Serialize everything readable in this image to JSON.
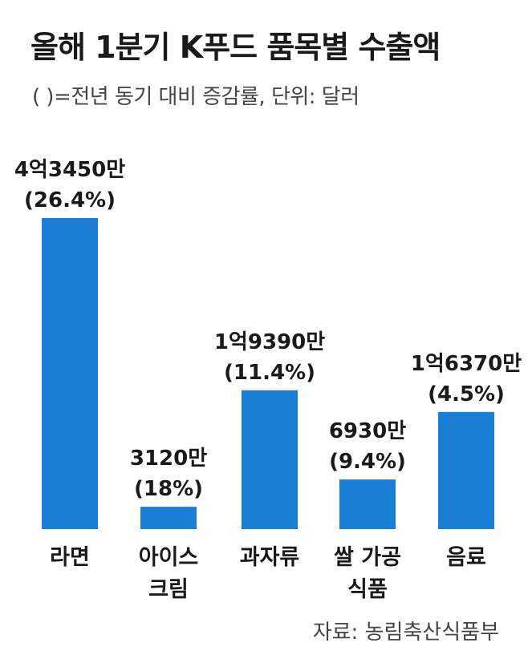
{
  "title": "올해 1분기 K푸드 품목별 수출액",
  "subtitle": "( )=전년 동기 대비 증감률, 단위: 달러",
  "source": "자료: 농림축산식품부",
  "chart_data": {
    "type": "bar",
    "title": "올해 1분기 K푸드 품목별 수출액",
    "subtitle": "( )=전년 동기 대비 증감률, 단위: 달러",
    "categories": [
      [
        "라면"
      ],
      [
        "아이스",
        "크림"
      ],
      [
        "과자류"
      ],
      [
        "쌀 가공",
        "식품"
      ],
      [
        "음료"
      ]
    ],
    "values": [
      434500000,
      31200000,
      193900000,
      69300000,
      163700000
    ],
    "value_labels": [
      "4억3450만",
      "3120만",
      "1억9390만",
      "6930만",
      "1억6370만"
    ],
    "change_labels": [
      "(26.4%)",
      "(18%)",
      "(11.4%)",
      "(9.4%)",
      "(4.5%)"
    ],
    "bar_color": "#1a7fd4",
    "ylim": [
      0,
      434500000
    ],
    "grid": false,
    "legend": "none"
  }
}
